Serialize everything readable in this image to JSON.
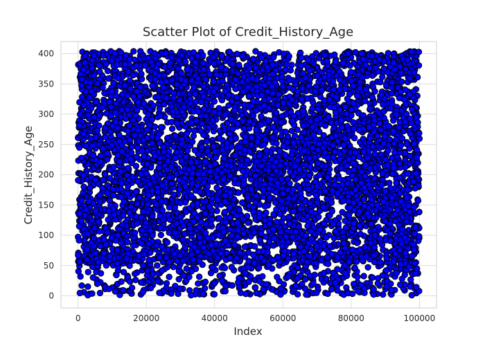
{
  "chart_data": {
    "type": "scatter",
    "title": "Scatter Plot of Credit_History_Age",
    "xlabel": "Index",
    "ylabel": "Credit_History_Age",
    "xlim": [
      -5000,
      105000
    ],
    "ylim": [
      -20,
      420
    ],
    "x_ticks": [
      0,
      20000,
      40000,
      60000,
      80000,
      100000
    ],
    "x_tick_labels": [
      "0",
      "20000",
      "40000",
      "60000",
      "80000",
      "100000"
    ],
    "y_ticks": [
      0,
      50,
      100,
      150,
      200,
      250,
      300,
      350,
      400
    ],
    "y_tick_labels": [
      "0",
      "50",
      "100",
      "150",
      "200",
      "250",
      "300",
      "350",
      "400"
    ],
    "grid": true,
    "series": [
      {
        "color": "#0000ff",
        "edge_color": "#000000",
        "x_range": [
          0,
          99999
        ],
        "y_range": [
          1,
          404
        ],
        "point_count": 100000,
        "low_density_band_below": 55
      }
    ]
  }
}
